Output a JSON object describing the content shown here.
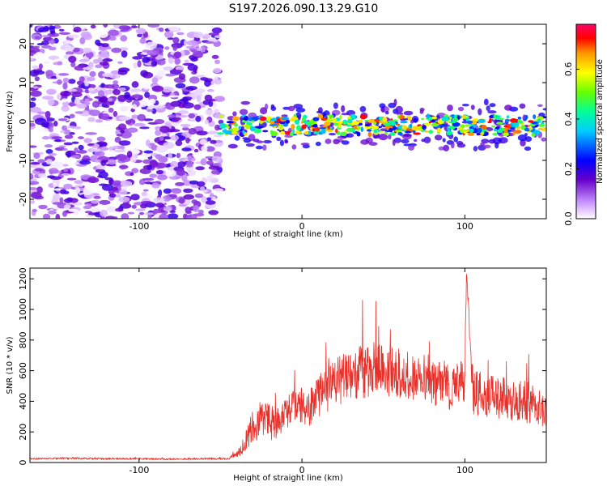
{
  "title": "S197.2026.090.13.29.G10",
  "colors": {
    "snr_line": "#e8302a",
    "background": "#ffffff",
    "axis": "#000000"
  },
  "chart_data": [
    {
      "type": "heatmap",
      "name": "spectrogram",
      "xlabel": "Height of straight line (km)",
      "ylabel": "Frequency (Hz)",
      "xlim": [
        -167,
        150
      ],
      "ylim": [
        -25,
        25
      ],
      "xticks": [
        -100,
        0,
        100
      ],
      "yticks": [
        -20,
        -10,
        0,
        10,
        20
      ],
      "colorbar": {
        "label": "Normalized spectral amplitude",
        "range": [
          0,
          0.78
        ],
        "ticks": [
          0.0,
          0.2,
          0.4,
          0.6
        ],
        "colormap": "rainbow"
      },
      "regions": [
        {
          "x_range": [
            -167,
            -50
          ],
          "frequency_range": [
            -25,
            25
          ],
          "description": "broadband noise",
          "amplitude": [
            0.0,
            0.2
          ]
        },
        {
          "x_range": [
            -50,
            150
          ],
          "frequency_center": -1,
          "frequency_width": 3,
          "description": "signal trace",
          "amplitude": [
            0.2,
            0.75
          ]
        }
      ]
    },
    {
      "type": "line",
      "name": "snr",
      "xlabel": "Height of straight line (km)",
      "ylabel": "SNR (10 * v/v)",
      "xlim": [
        -167,
        150
      ],
      "ylim": [
        0,
        1270
      ],
      "xticks": [
        -100,
        0,
        100
      ],
      "yticks": [
        0,
        200,
        400,
        600,
        800,
        1000,
        1200
      ],
      "series": [
        {
          "name": "SNR",
          "x": [
            -167,
            -140,
            -120,
            -100,
            -80,
            -60,
            -45,
            -38,
            -35,
            -30,
            -25,
            -20,
            -15,
            -10,
            -5,
            0,
            5,
            10,
            15,
            20,
            25,
            30,
            35,
            40,
            45,
            50,
            55,
            60,
            65,
            70,
            75,
            80,
            85,
            90,
            95,
            100,
            101,
            105,
            110,
            115,
            120,
            125,
            130,
            135,
            140,
            145,
            150
          ],
          "values": [
            25,
            28,
            25,
            25,
            22,
            25,
            25,
            70,
            140,
            240,
            290,
            260,
            250,
            310,
            380,
            370,
            360,
            430,
            470,
            510,
            545,
            570,
            590,
            600,
            610,
            600,
            590,
            570,
            560,
            555,
            540,
            530,
            510,
            505,
            490,
            560,
            1250,
            460,
            450,
            440,
            430,
            420,
            410,
            400,
            390,
            380,
            360
          ],
          "amplitude": [
            5,
            6,
            5,
            5,
            5,
            5,
            5,
            30,
            70,
            110,
            130,
            120,
            110,
            100,
            110,
            120,
            130,
            140,
            150,
            160,
            170,
            175,
            180,
            180,
            180,
            175,
            175,
            170,
            170,
            165,
            165,
            160,
            160,
            160,
            160,
            160,
            0,
            150,
            150,
            150,
            145,
            145,
            145,
            140,
            140,
            140,
            140
          ]
        }
      ]
    }
  ]
}
